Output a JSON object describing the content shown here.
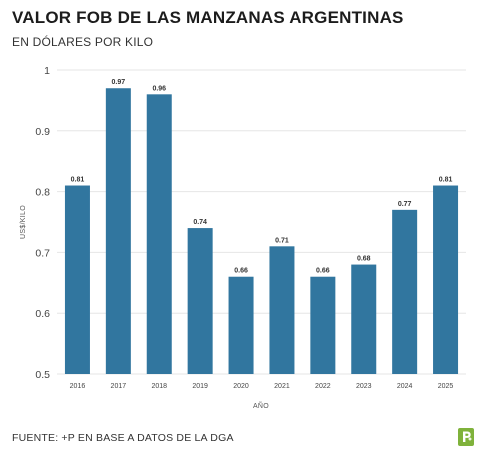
{
  "title": "VALOR FOB DE LAS MANZANAS ARGENTINAS",
  "subtitle": "EN DÓLARES POR KILO",
  "source": "FUENTE: +P EN BASE A DATOS DE LA DGA",
  "logo_icon": "p-logo-icon",
  "colors": {
    "bar": "#31769f",
    "grid": "#e6e6e6",
    "logo": "#7fb23b"
  },
  "chart_data": {
    "type": "bar",
    "categories": [
      "2016",
      "2017",
      "2018",
      "2019",
      "2020",
      "2021",
      "2022",
      "2023",
      "2024",
      "2025"
    ],
    "values": [
      0.81,
      0.97,
      0.96,
      0.74,
      0.66,
      0.71,
      0.66,
      0.68,
      0.77,
      0.81
    ],
    "data_labels": [
      "0.81",
      "0.97",
      "0.96",
      "0.74",
      "0.66",
      "0.71",
      "0.66",
      "0.68",
      "0.77",
      "0.81"
    ],
    "xlabel": "AÑO",
    "ylabel": "US$/KILO",
    "ylim": [
      0.5,
      1
    ],
    "yticks": [
      0.5,
      0.6,
      0.7,
      0.8,
      0.9,
      1
    ],
    "ytick_labels": [
      "0.5",
      "0.6",
      "0.7",
      "0.8",
      "0.9",
      "1"
    ],
    "grid": true
  }
}
